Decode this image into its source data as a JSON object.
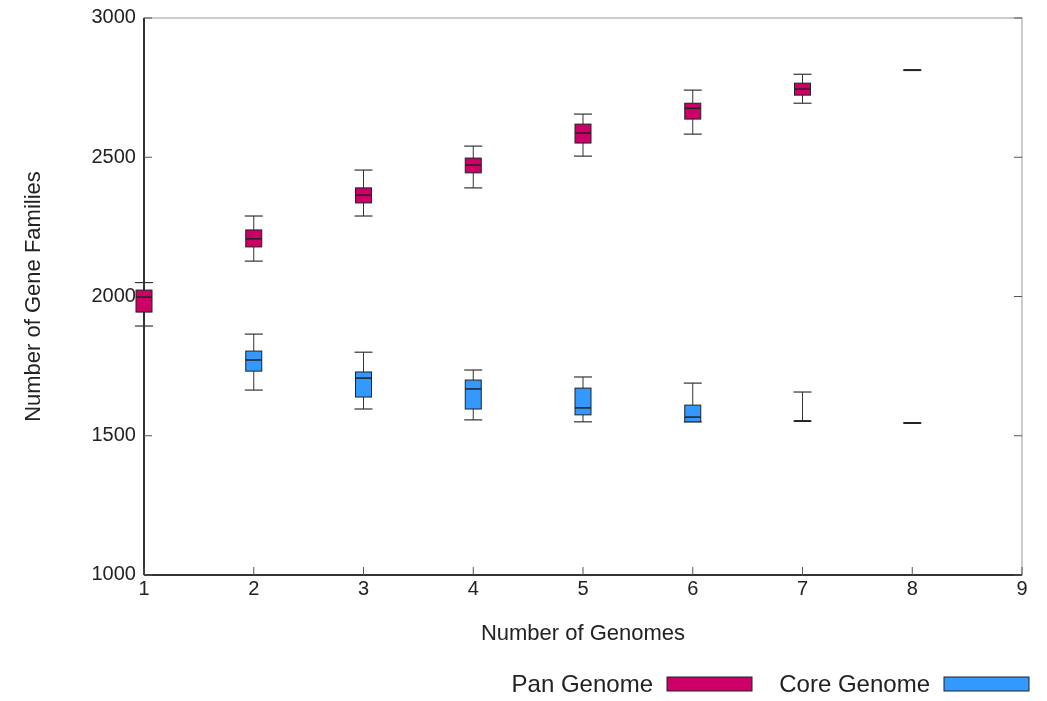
{
  "chart_data": {
    "type": "box",
    "xlabel": "Number of Genomes",
    "ylabel": "Number of Gene Families",
    "xlim": [
      1,
      9
    ],
    "xticks": [
      1,
      2,
      3,
      4,
      5,
      6,
      7,
      8,
      9
    ],
    "ylim": [
      1000,
      3000
    ],
    "yticks": [
      1000,
      1500,
      2000,
      2500,
      3000
    ],
    "grid": false,
    "legend": "bottom right",
    "series": [
      {
        "name": "Pan Genome",
        "color": "#cc0066",
        "x": [
          1,
          2,
          3,
          4,
          5,
          6,
          7,
          8
        ],
        "boxes": [
          {
            "low": 1894,
            "q1": 1944,
            "median": 1998,
            "q3": 2023,
            "high": 2050
          },
          {
            "low": 2127,
            "q1": 2178,
            "median": 2207,
            "q3": 2239,
            "high": 2289
          },
          {
            "low": 2289,
            "q1": 2336,
            "median": 2364,
            "q3": 2390,
            "high": 2454
          },
          {
            "low": 2390,
            "q1": 2444,
            "median": 2472,
            "q3": 2497,
            "high": 2540
          },
          {
            "low": 2504,
            "q1": 2551,
            "median": 2587,
            "q3": 2619,
            "high": 2655
          },
          {
            "low": 2583,
            "q1": 2637,
            "median": 2676,
            "q3": 2694,
            "high": 2741
          },
          {
            "low": 2694,
            "q1": 2723,
            "median": 2745,
            "q3": 2766,
            "high": 2798
          },
          {
            "low": 2813,
            "q1": 2813,
            "median": 2813,
            "q3": 2813,
            "high": 2813
          }
        ]
      },
      {
        "name": "Core Genome",
        "color": "#3399ff",
        "x": [
          2,
          3,
          4,
          5,
          6,
          7,
          8
        ],
        "boxes": [
          {
            "low": 1664,
            "q1": 1732,
            "median": 1772,
            "q3": 1804,
            "high": 1865
          },
          {
            "low": 1596,
            "q1": 1639,
            "median": 1707,
            "q3": 1729,
            "high": 1800
          },
          {
            "low": 1557,
            "q1": 1596,
            "median": 1668,
            "q3": 1700,
            "high": 1736
          },
          {
            "low": 1550,
            "q1": 1575,
            "median": 1600,
            "q3": 1671,
            "high": 1711
          },
          {
            "low": 1550,
            "q1": 1550,
            "median": 1567,
            "q3": 1610,
            "high": 1689
          },
          {
            "low": 1553,
            "q1": 1553,
            "median": 1553,
            "q3": 1553,
            "high": 1657
          },
          {
            "low": 1546,
            "q1": 1546,
            "median": 1546,
            "q3": 1546,
            "high": 1546
          }
        ]
      }
    ]
  }
}
